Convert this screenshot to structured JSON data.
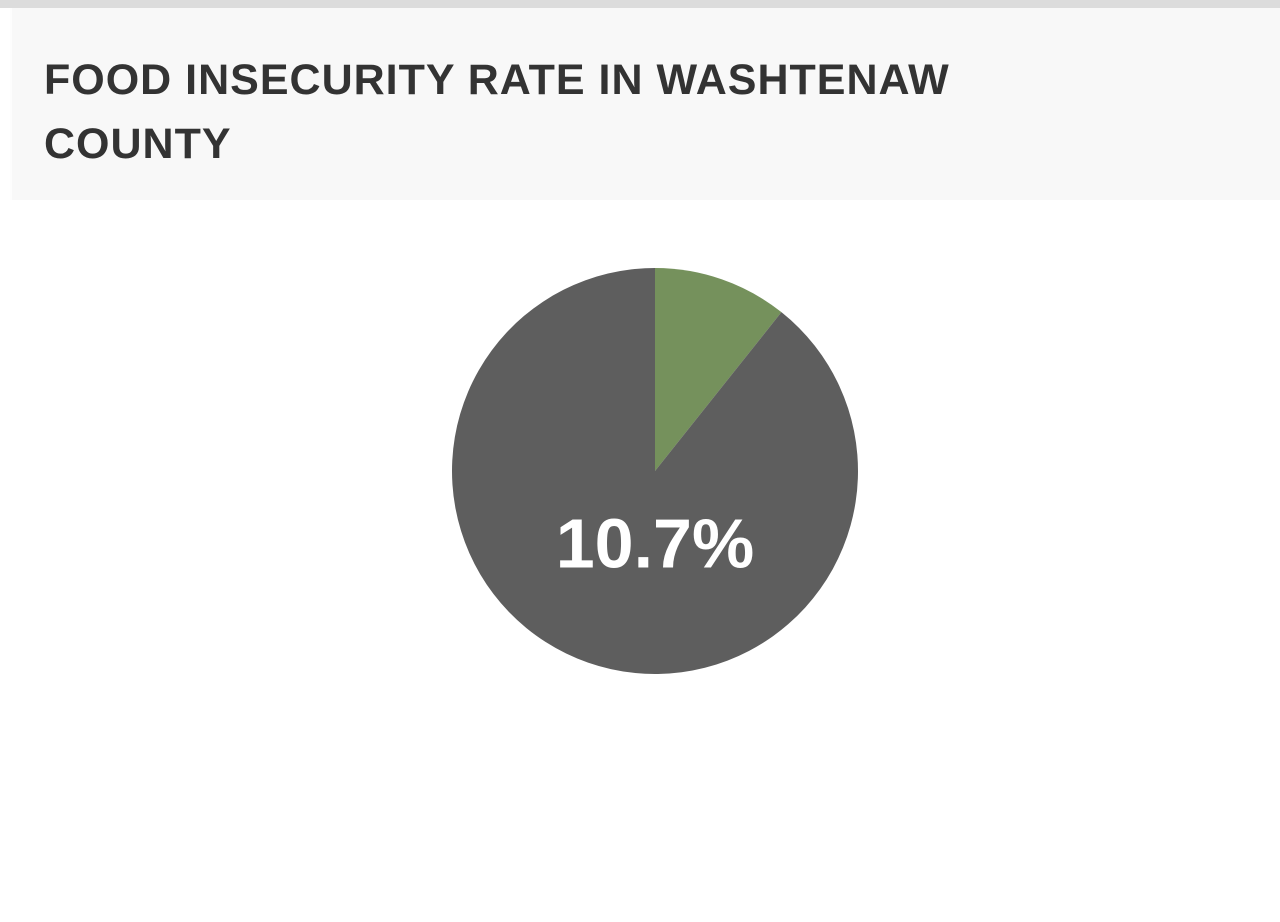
{
  "chart_data": {
    "type": "pie",
    "title": "FOOD INSECURITY RATE IN WASHTENAW COUNTY",
    "values": [
      10.7,
      89.3
    ],
    "value_labels": [
      "10.7%",
      null
    ],
    "colors": [
      "#75915c",
      "#5e5e5e"
    ],
    "label_color": "#ffffff"
  }
}
